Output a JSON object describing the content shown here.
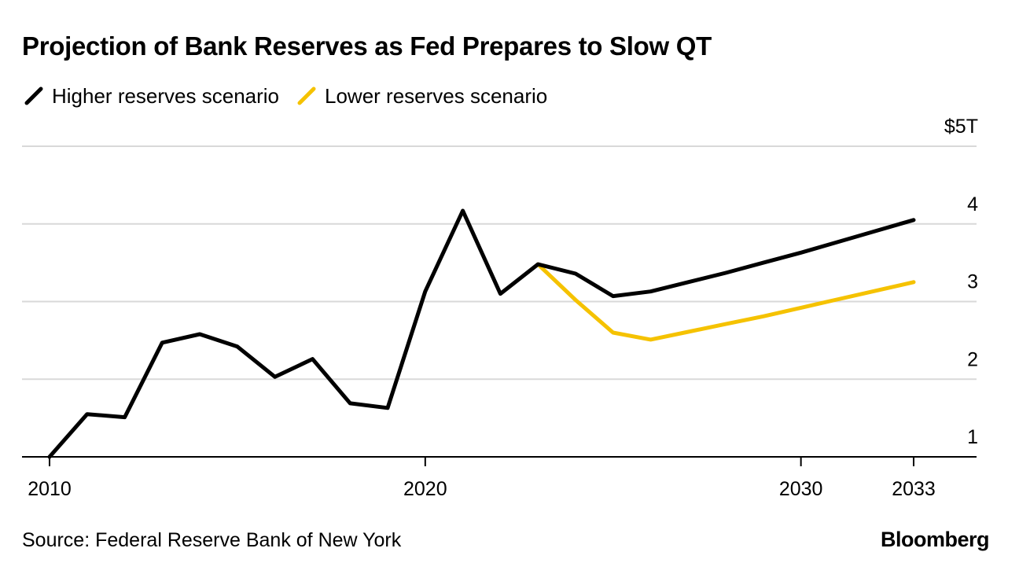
{
  "chart_data": {
    "type": "line",
    "title": "Projection of Bank Reserves as Fed Prepares to Slow QT",
    "xlabel": "",
    "ylabel": "",
    "y_unit_prefix": "$",
    "y_unit_suffix": "T",
    "ylim": [
      0.95,
      5
    ],
    "yticks": [
      1,
      2,
      3,
      4,
      5
    ],
    "ytick_labels": [
      "1",
      "2",
      "3",
      "4",
      "$5T"
    ],
    "xlim": [
      2009.3,
      2035.8
    ],
    "xticks": [
      2010,
      2020,
      2030,
      2033
    ],
    "xtick_labels": [
      "2010",
      "2020",
      "2030",
      "2033"
    ],
    "grid": true,
    "legend_position": "top-left",
    "series": [
      {
        "name": "Higher reserves scenario",
        "color": "#000000",
        "x": [
          2010,
          2011,
          2012,
          2013,
          2014,
          2015,
          2016,
          2017,
          2018,
          2019,
          2020,
          2021,
          2022,
          2023,
          2024,
          2025,
          2026,
          2027,
          2028,
          2029,
          2030,
          2031,
          2032,
          2033
        ],
        "values": [
          1.0,
          1.55,
          1.51,
          2.47,
          2.58,
          2.42,
          2.03,
          2.26,
          1.69,
          1.63,
          3.13,
          4.17,
          3.1,
          3.48,
          3.36,
          3.07,
          3.13,
          3.25,
          3.37,
          3.5,
          3.63,
          3.77,
          3.91,
          4.05
        ]
      },
      {
        "name": "Lower reserves scenario",
        "color": "#f5c200",
        "x": [
          2023,
          2024,
          2025,
          2026,
          2027,
          2028,
          2029,
          2030,
          2031,
          2032,
          2033
        ],
        "values": [
          3.48,
          3.02,
          2.6,
          2.51,
          2.61,
          2.71,
          2.81,
          2.92,
          3.03,
          3.14,
          3.25
        ]
      }
    ]
  },
  "legend": [
    {
      "label": "Higher reserves scenario",
      "color": "#000000"
    },
    {
      "label": "Lower reserves scenario",
      "color": "#f5c200"
    }
  ],
  "footer": {
    "source": "Source: Federal Reserve Bank of New York",
    "brand": "Bloomberg"
  }
}
